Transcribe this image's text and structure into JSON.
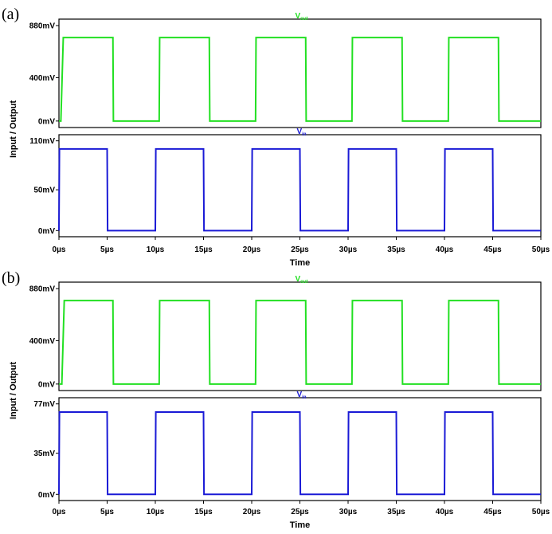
{
  "chart_data": [
    {
      "panel_label": "(a)",
      "type": "line",
      "xlabel": "Time",
      "ylabel": "Input / Output",
      "x_unit": "µs",
      "xlim": [
        0,
        50
      ],
      "x_ticks": [
        "0µs",
        "5µs",
        "10µs",
        "15µs",
        "20µs",
        "25µs",
        "30µs",
        "35µs",
        "40µs",
        "45µs",
        "50µs"
      ],
      "subplots": [
        {
          "name": "out",
          "title_main": "V",
          "title_sub": "out",
          "color": "#22e022",
          "ylim": [
            0,
            880
          ],
          "y_ticks": [
            {
              "value": 880,
              "label": "880mV"
            },
            {
              "value": 400,
              "label": "400mV"
            },
            {
              "value": 0,
              "label": "0mV"
            }
          ],
          "series": [
            {
              "name": "Vout",
              "x": [
                0,
                0.2,
                0.45,
                5.6,
                5.65,
                10.4,
                10.45,
                15.6,
                15.65,
                20.4,
                20.45,
                25.6,
                25.65,
                30.4,
                30.45,
                35.6,
                35.65,
                40.4,
                40.45,
                45.6,
                45.65,
                50
              ],
              "y": [
                0,
                0,
                770,
                770,
                0,
                0,
                770,
                770,
                0,
                0,
                770,
                770,
                0,
                0,
                770,
                770,
                0,
                0,
                770,
                770,
                0,
                0
              ]
            }
          ]
        },
        {
          "name": "in",
          "title_main": "V",
          "title_sub": "in",
          "color": "#1a1ad6",
          "ylim": [
            0,
            110
          ],
          "y_ticks": [
            {
              "value": 110,
              "label": "110mV"
            },
            {
              "value": 50,
              "label": "50mV"
            },
            {
              "value": 0,
              "label": "0mV"
            }
          ],
          "series": [
            {
              "name": "Vin",
              "x": [
                0,
                0.05,
                5,
                5.05,
                10,
                10.05,
                15,
                15.05,
                20,
                20.05,
                25,
                25.05,
                30,
                30.05,
                35,
                35.05,
                40,
                40.05,
                45,
                45.05,
                50
              ],
              "y": [
                0,
                100,
                100,
                0,
                0,
                100,
                100,
                0,
                0,
                100,
                100,
                0,
                0,
                100,
                100,
                0,
                0,
                100,
                100,
                0,
                0
              ]
            }
          ]
        }
      ]
    },
    {
      "panel_label": "(b)",
      "type": "line",
      "xlabel": "Time",
      "ylabel": "Input / Output",
      "x_unit": "µs",
      "xlim": [
        0,
        50
      ],
      "x_ticks": [
        "0µs",
        "5µs",
        "10µs",
        "15µs",
        "20µs",
        "25µs",
        "30µs",
        "35µs",
        "40µs",
        "45µs",
        "50µs"
      ],
      "subplots": [
        {
          "name": "out",
          "title_main": "V",
          "title_sub": "out",
          "color": "#22e022",
          "ylim": [
            0,
            880
          ],
          "y_ticks": [
            {
              "value": 880,
              "label": "880mV"
            },
            {
              "value": 400,
              "label": "400mV"
            },
            {
              "value": 0,
              "label": "0mV"
            }
          ],
          "series": [
            {
              "name": "Vout",
              "x": [
                0,
                0.3,
                0.55,
                5.6,
                5.65,
                10.4,
                10.45,
                15.6,
                15.65,
                20.4,
                20.45,
                25.6,
                25.65,
                30.4,
                30.45,
                35.6,
                35.65,
                40.4,
                40.45,
                45.6,
                45.65,
                50
              ],
              "y": [
                0,
                0,
                770,
                770,
                0,
                0,
                770,
                770,
                0,
                0,
                770,
                770,
                0,
                0,
                770,
                770,
                0,
                0,
                770,
                770,
                0,
                0
              ]
            }
          ]
        },
        {
          "name": "in",
          "title_main": "V",
          "title_sub": "in",
          "color": "#1a1ad6",
          "ylim": [
            0,
            77
          ],
          "y_ticks": [
            {
              "value": 77,
              "label": "77mV"
            },
            {
              "value": 35,
              "label": "35mV"
            },
            {
              "value": 0,
              "label": "0mV"
            }
          ],
          "series": [
            {
              "name": "Vin",
              "x": [
                0,
                0.05,
                5,
                5.05,
                10,
                10.05,
                15,
                15.05,
                20,
                20.05,
                25,
                25.05,
                30,
                30.05,
                35,
                35.05,
                40,
                40.05,
                45,
                45.05,
                50
              ],
              "y": [
                0,
                70,
                70,
                0,
                0,
                70,
                70,
                0,
                0,
                70,
                70,
                0,
                0,
                70,
                70,
                0,
                0,
                70,
                70,
                0,
                0
              ]
            }
          ]
        }
      ]
    }
  ]
}
